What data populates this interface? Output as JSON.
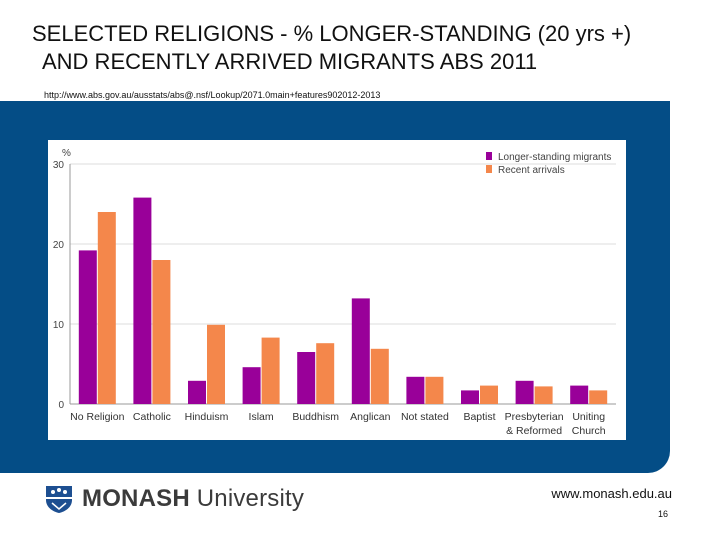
{
  "title": {
    "line1": "SELECTED RELIGIONS - % LONGER-STANDING (20 yrs +)",
    "line2": "AND RECENTLY ARRIVED MIGRANTS ABS 2011"
  },
  "source_url": "http://www.abs.gov.au/ausstats/abs@.nsf/Lookup/2071.0main+features902012-2013",
  "footer": {
    "logo_bold": "MONASH",
    "logo_regular": " University",
    "site_url": "www.monash.edu.au",
    "page_number": "16"
  },
  "colors": {
    "panel": "#044d86",
    "longer_standing": "#990099",
    "recent": "#f4874b"
  },
  "chart_data": {
    "type": "bar",
    "ylabel": "%",
    "ylim": [
      0,
      30
    ],
    "yticks": [
      "0",
      "10",
      "20",
      "30"
    ],
    "grid": true,
    "legend_position": "top-right",
    "categories": [
      [
        "No Religion"
      ],
      [
        "Catholic"
      ],
      [
        "Hinduism"
      ],
      [
        "Islam"
      ],
      [
        "Buddhism"
      ],
      [
        "Anglican"
      ],
      [
        "Not stated"
      ],
      [
        "Baptist"
      ],
      [
        "Presbyterian",
        "& Reformed"
      ],
      [
        "Uniting",
        "Church"
      ]
    ],
    "series": [
      {
        "name": "Longer-standing migrants",
        "color": "#990099",
        "values": [
          19.2,
          25.8,
          2.9,
          4.6,
          6.5,
          13.2,
          3.4,
          1.7,
          2.9,
          2.3
        ]
      },
      {
        "name": "Recent arrivals",
        "color": "#f4874b",
        "values": [
          24.0,
          18.0,
          9.9,
          8.3,
          7.6,
          6.9,
          3.4,
          2.3,
          2.2,
          1.7
        ]
      }
    ]
  }
}
